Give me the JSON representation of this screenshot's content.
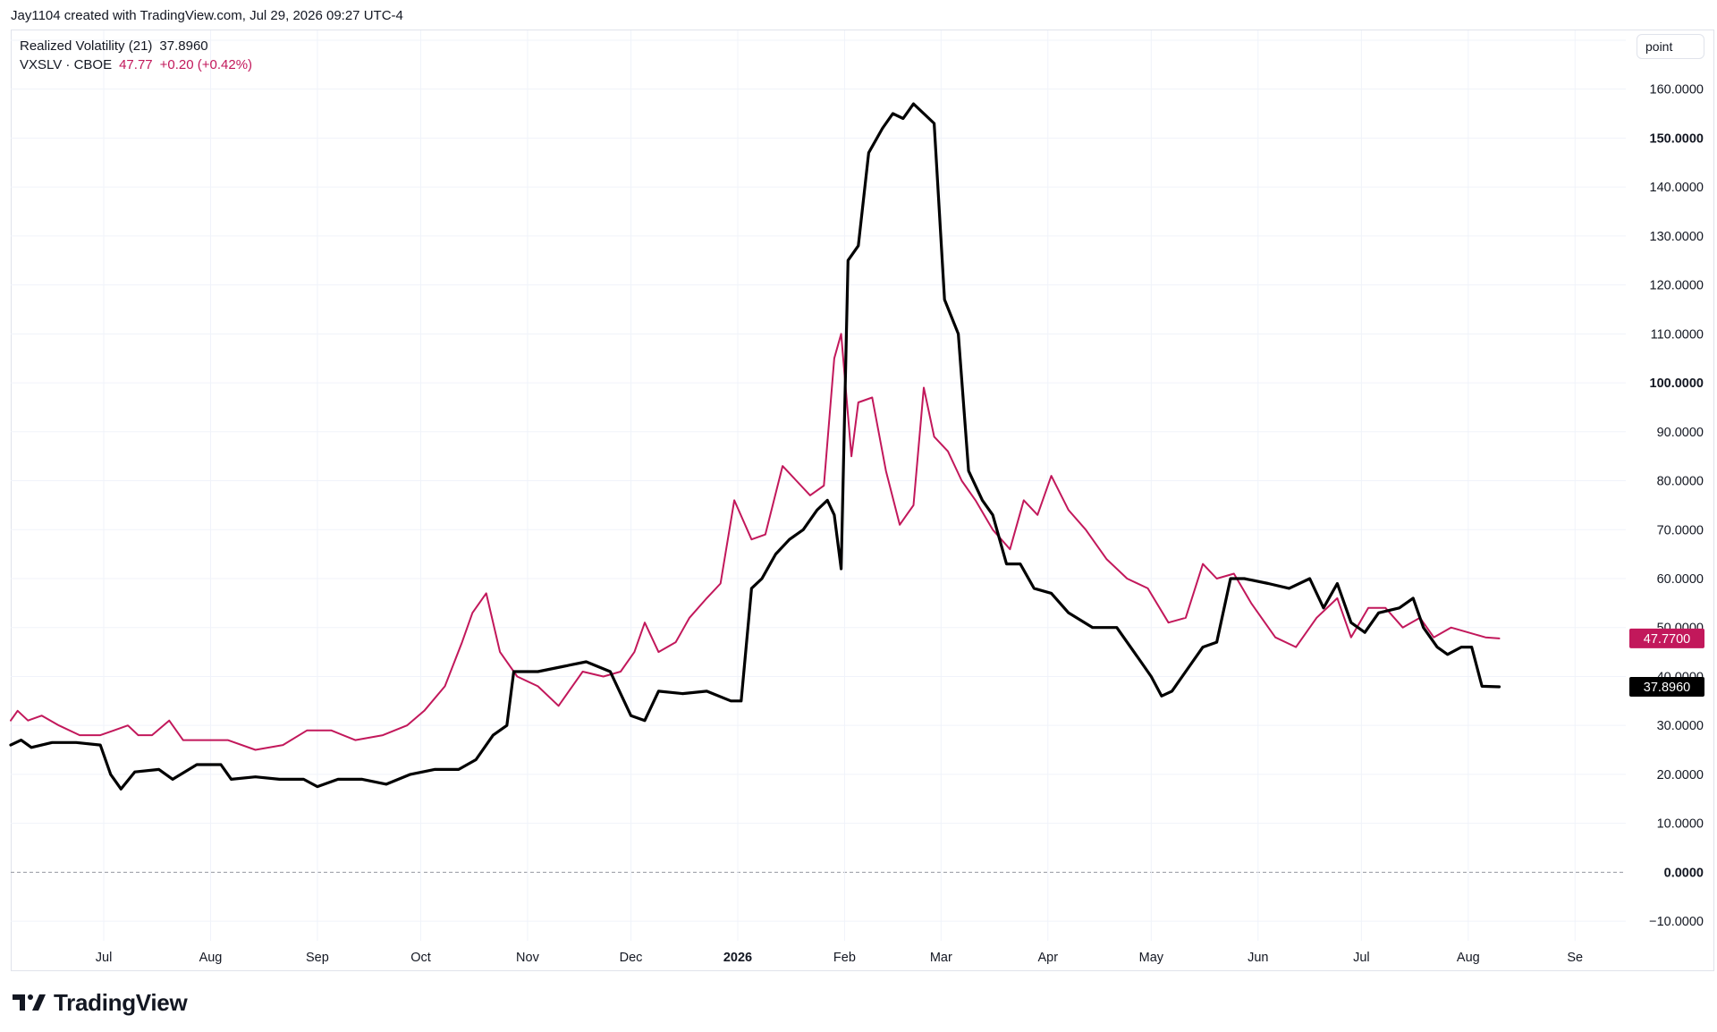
{
  "header": {
    "credit": "Jay1104 created with TradingView.com, Jul 29, 2026 09:27 UTC-4"
  },
  "legend": {
    "indicator": {
      "name": "Realized Volatility (21)",
      "value": "37.8960",
      "color": "#000000"
    },
    "symbol": {
      "name": "VXSLV · CBOE",
      "price": "47.77",
      "change": "+0.20 (+0.42%)",
      "color": "#c2185b"
    }
  },
  "scale_mode": "point",
  "brand": {
    "name": "TradingView"
  },
  "chart_data": {
    "type": "line",
    "y_axis": {
      "position": "right",
      "ylim": [
        -14,
        172
      ],
      "ticks": [
        -10,
        0,
        10,
        20,
        30,
        40,
        50,
        60,
        70,
        80,
        90,
        100,
        110,
        120,
        130,
        140,
        150,
        160,
        170
      ],
      "bold_ticks": [
        0,
        100,
        150
      ],
      "zero_line": "dashed"
    },
    "x_axis": {
      "type": "date",
      "range": [
        "2025-06-04",
        "2026-09-30"
      ],
      "ticks": [
        {
          "label": "Jul",
          "date": "2025-07-01"
        },
        {
          "label": "Aug",
          "date": "2025-08-01"
        },
        {
          "label": "Sep",
          "date": "2025-09-01"
        },
        {
          "label": "Oct",
          "date": "2025-10-01"
        },
        {
          "label": "Nov",
          "date": "2025-11-01"
        },
        {
          "label": "Dec",
          "date": "2025-12-01"
        },
        {
          "label": "2026",
          "date": "2026-01-01",
          "bold": true
        },
        {
          "label": "Feb",
          "date": "2026-02-01"
        },
        {
          "label": "Mar",
          "date": "2026-03-01"
        },
        {
          "label": "Apr",
          "date": "2026-04-01"
        },
        {
          "label": "May",
          "date": "2026-05-01"
        },
        {
          "label": "Jun",
          "date": "2026-06-01"
        },
        {
          "label": "Jul",
          "date": "2026-07-01"
        },
        {
          "label": "Aug",
          "date": "2026-08-01"
        },
        {
          "label": "Se",
          "date": "2026-09-01"
        }
      ]
    },
    "grid": true,
    "series": [
      {
        "name": "Realized Volatility (21)",
        "color": "#000000",
        "last_value": "37.8960",
        "points": [
          [
            "2025-06-04",
            26
          ],
          [
            "2025-06-07",
            27
          ],
          [
            "2025-06-10",
            25.5
          ],
          [
            "2025-06-16",
            26.5
          ],
          [
            "2025-06-23",
            26.5
          ],
          [
            "2025-06-30",
            26
          ],
          [
            "2025-07-03",
            20
          ],
          [
            "2025-07-06",
            17
          ],
          [
            "2025-07-10",
            20.5
          ],
          [
            "2025-07-17",
            21
          ],
          [
            "2025-07-21",
            19
          ],
          [
            "2025-07-28",
            22
          ],
          [
            "2025-08-04",
            22
          ],
          [
            "2025-08-07",
            19
          ],
          [
            "2025-08-14",
            19.5
          ],
          [
            "2025-08-21",
            19
          ],
          [
            "2025-08-28",
            19
          ],
          [
            "2025-09-01",
            17.5
          ],
          [
            "2025-09-07",
            19
          ],
          [
            "2025-09-14",
            19
          ],
          [
            "2025-09-21",
            18
          ],
          [
            "2025-09-28",
            20
          ],
          [
            "2025-10-05",
            21
          ],
          [
            "2025-10-12",
            21
          ],
          [
            "2025-10-17",
            23
          ],
          [
            "2025-10-22",
            28
          ],
          [
            "2025-10-26",
            30
          ],
          [
            "2025-10-28",
            41
          ],
          [
            "2025-11-04",
            41
          ],
          [
            "2025-11-11",
            42
          ],
          [
            "2025-11-18",
            43
          ],
          [
            "2025-11-25",
            41
          ],
          [
            "2025-12-01",
            32
          ],
          [
            "2025-12-05",
            31
          ],
          [
            "2025-12-09",
            37
          ],
          [
            "2025-12-16",
            36.5
          ],
          [
            "2025-12-23",
            37
          ],
          [
            "2025-12-30",
            35
          ],
          [
            "2026-01-02",
            35
          ],
          [
            "2026-01-05",
            58
          ],
          [
            "2026-01-08",
            60
          ],
          [
            "2026-01-12",
            65
          ],
          [
            "2026-01-16",
            68
          ],
          [
            "2026-01-20",
            70
          ],
          [
            "2026-01-24",
            74
          ],
          [
            "2026-01-27",
            76
          ],
          [
            "2026-01-29",
            73
          ],
          [
            "2026-01-31",
            62
          ],
          [
            "2026-02-02",
            125
          ],
          [
            "2026-02-05",
            128
          ],
          [
            "2026-02-08",
            147
          ],
          [
            "2026-02-12",
            152
          ],
          [
            "2026-02-15",
            155
          ],
          [
            "2026-02-18",
            154
          ],
          [
            "2026-02-21",
            157
          ],
          [
            "2026-02-24",
            155
          ],
          [
            "2026-02-27",
            153
          ],
          [
            "2026-03-02",
            117
          ],
          [
            "2026-03-06",
            110
          ],
          [
            "2026-03-09",
            82
          ],
          [
            "2026-03-13",
            76
          ],
          [
            "2026-03-16",
            73
          ],
          [
            "2026-03-20",
            63
          ],
          [
            "2026-03-24",
            63
          ],
          [
            "2026-03-28",
            58
          ],
          [
            "2026-04-02",
            57
          ],
          [
            "2026-04-07",
            53
          ],
          [
            "2026-04-14",
            50
          ],
          [
            "2026-04-21",
            50
          ],
          [
            "2026-04-28",
            43
          ],
          [
            "2026-05-01",
            40
          ],
          [
            "2026-05-04",
            36
          ],
          [
            "2026-05-07",
            37
          ],
          [
            "2026-05-12",
            42
          ],
          [
            "2026-05-16",
            46
          ],
          [
            "2026-05-20",
            47
          ],
          [
            "2026-05-24",
            60
          ],
          [
            "2026-05-28",
            60
          ],
          [
            "2026-06-04",
            59
          ],
          [
            "2026-06-10",
            58
          ],
          [
            "2026-06-16",
            60
          ],
          [
            "2026-06-20",
            54
          ],
          [
            "2026-06-24",
            59
          ],
          [
            "2026-06-28",
            51
          ],
          [
            "2026-07-02",
            49
          ],
          [
            "2026-07-06",
            53
          ],
          [
            "2026-07-12",
            54
          ],
          [
            "2026-07-16",
            56
          ],
          [
            "2026-07-19",
            50
          ],
          [
            "2026-07-23",
            46
          ],
          [
            "2026-07-26",
            44.5
          ],
          [
            "2026-07-30",
            46
          ],
          [
            "2026-08-02",
            46
          ],
          [
            "2026-08-05",
            38
          ],
          [
            "2026-08-10",
            37.896
          ]
        ]
      },
      {
        "name": "VXSLV · CBOE",
        "color": "#c2185b",
        "last_value": "47.7700",
        "points": [
          [
            "2025-06-04",
            31
          ],
          [
            "2025-06-06",
            33
          ],
          [
            "2025-06-09",
            31
          ],
          [
            "2025-06-13",
            32
          ],
          [
            "2025-06-18",
            30
          ],
          [
            "2025-06-24",
            28
          ],
          [
            "2025-06-30",
            28
          ],
          [
            "2025-07-04",
            29
          ],
          [
            "2025-07-08",
            30
          ],
          [
            "2025-07-11",
            28
          ],
          [
            "2025-07-15",
            28
          ],
          [
            "2025-07-20",
            31
          ],
          [
            "2025-07-24",
            27
          ],
          [
            "2025-07-30",
            27
          ],
          [
            "2025-08-06",
            27
          ],
          [
            "2025-08-14",
            25
          ],
          [
            "2025-08-22",
            26
          ],
          [
            "2025-08-29",
            29
          ],
          [
            "2025-09-05",
            29
          ],
          [
            "2025-09-12",
            27
          ],
          [
            "2025-09-20",
            28
          ],
          [
            "2025-09-27",
            30
          ],
          [
            "2025-10-02",
            33
          ],
          [
            "2025-10-08",
            38
          ],
          [
            "2025-10-13",
            47
          ],
          [
            "2025-10-16",
            53
          ],
          [
            "2025-10-20",
            57
          ],
          [
            "2025-10-24",
            45
          ],
          [
            "2025-10-29",
            40
          ],
          [
            "2025-11-04",
            38
          ],
          [
            "2025-11-10",
            34
          ],
          [
            "2025-11-17",
            41
          ],
          [
            "2025-11-23",
            40
          ],
          [
            "2025-11-28",
            41
          ],
          [
            "2025-12-02",
            45
          ],
          [
            "2025-12-05",
            51
          ],
          [
            "2025-12-09",
            45
          ],
          [
            "2025-12-14",
            47
          ],
          [
            "2025-12-18",
            52
          ],
          [
            "2025-12-23",
            56
          ],
          [
            "2025-12-27",
            59
          ],
          [
            "2025-12-31",
            76
          ],
          [
            "2026-01-05",
            68
          ],
          [
            "2026-01-09",
            69
          ],
          [
            "2026-01-14",
            83
          ],
          [
            "2026-01-18",
            80
          ],
          [
            "2026-01-22",
            77
          ],
          [
            "2026-01-26",
            79
          ],
          [
            "2026-01-29",
            105
          ],
          [
            "2026-01-31",
            110
          ],
          [
            "2026-02-03",
            85
          ],
          [
            "2026-02-05",
            96
          ],
          [
            "2026-02-09",
            97
          ],
          [
            "2026-02-13",
            82
          ],
          [
            "2026-02-17",
            71
          ],
          [
            "2026-02-21",
            75
          ],
          [
            "2026-02-24",
            99
          ],
          [
            "2026-02-27",
            89
          ],
          [
            "2026-03-03",
            86
          ],
          [
            "2026-03-07",
            80
          ],
          [
            "2026-03-11",
            76
          ],
          [
            "2026-03-16",
            70
          ],
          [
            "2026-03-21",
            66
          ],
          [
            "2026-03-25",
            76
          ],
          [
            "2026-03-29",
            73
          ],
          [
            "2026-04-02",
            81
          ],
          [
            "2026-04-07",
            74
          ],
          [
            "2026-04-12",
            70
          ],
          [
            "2026-04-18",
            64
          ],
          [
            "2026-04-24",
            60
          ],
          [
            "2026-04-30",
            58
          ],
          [
            "2026-05-06",
            51
          ],
          [
            "2026-05-11",
            52
          ],
          [
            "2026-05-16",
            63
          ],
          [
            "2026-05-20",
            60
          ],
          [
            "2026-05-25",
            61
          ],
          [
            "2026-05-30",
            55
          ],
          [
            "2026-06-06",
            48
          ],
          [
            "2026-06-12",
            46
          ],
          [
            "2026-06-18",
            52
          ],
          [
            "2026-06-24",
            56
          ],
          [
            "2026-06-28",
            48
          ],
          [
            "2026-07-03",
            54
          ],
          [
            "2026-07-08",
            54
          ],
          [
            "2026-07-13",
            50
          ],
          [
            "2026-07-18",
            52
          ],
          [
            "2026-07-22",
            48
          ],
          [
            "2026-07-27",
            50
          ],
          [
            "2026-08-01",
            49
          ],
          [
            "2026-08-06",
            48
          ],
          [
            "2026-08-10",
            47.77
          ]
        ]
      }
    ]
  }
}
